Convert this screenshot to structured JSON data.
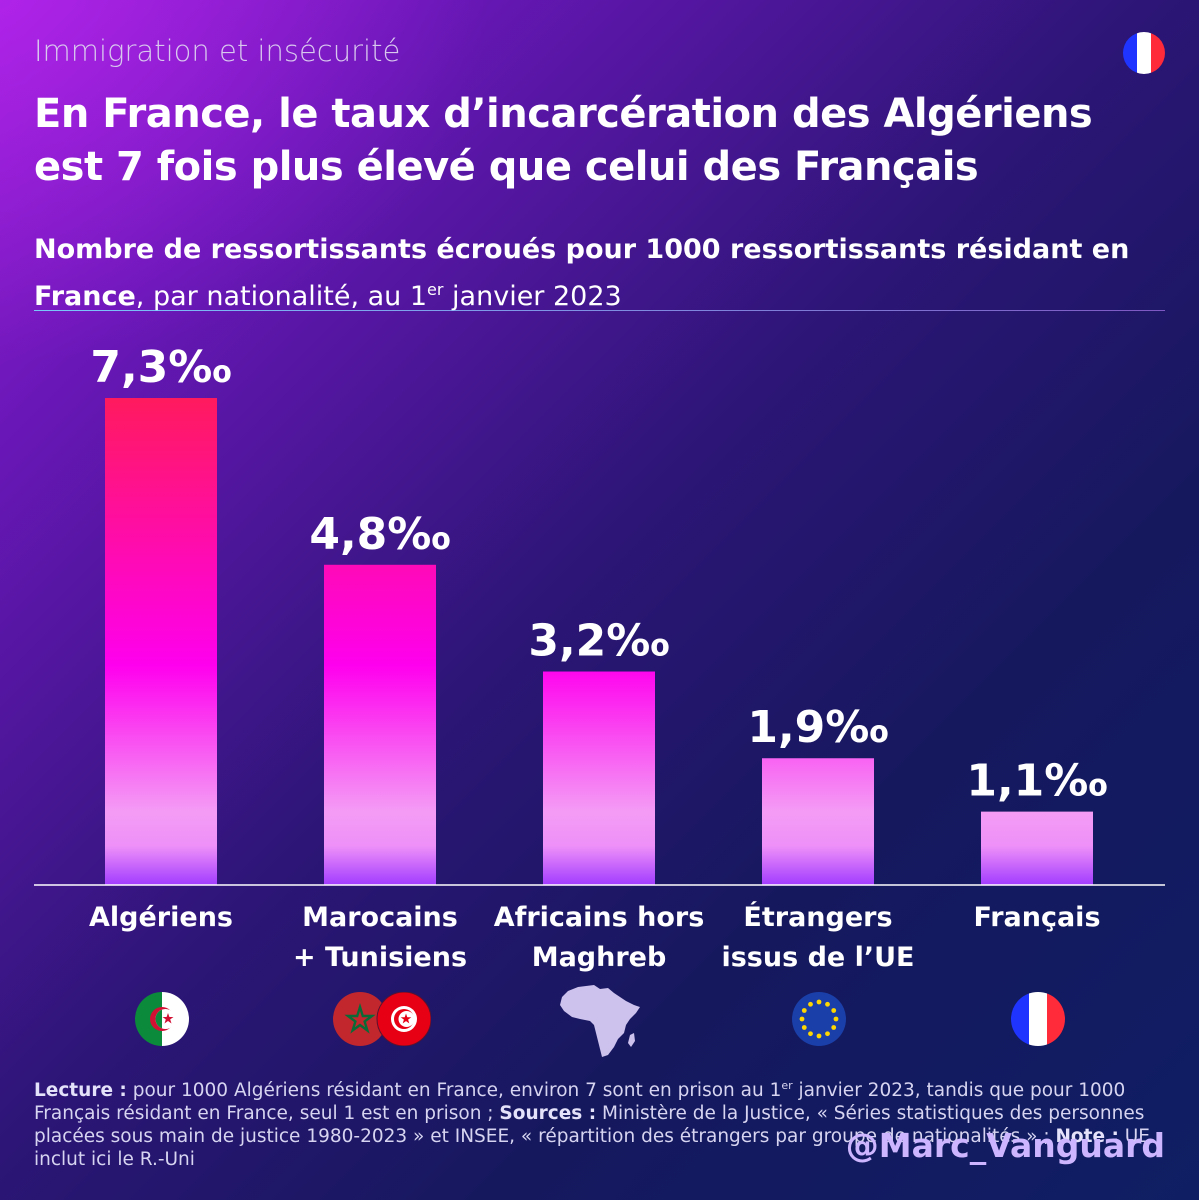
{
  "header": {
    "kicker": "Immigration et insécurité",
    "title_line1": "En France, le taux d’incarcération des Algériens",
    "title_line2": "est 7 fois plus élevé que celui des Français",
    "subtitle_bold_1": "Nombre de ressortissants écroués pour 1000 ressortissants résidant en",
    "subtitle_bold_2": "France",
    "subtitle_regular": ", par nationalité, au 1",
    "subtitle_sup": "er",
    "subtitle_end": " janvier 2023"
  },
  "chart_data": {
    "type": "bar",
    "title": "Nombre de ressortissants écroués pour 1000 ressortissants résidant en France, par nationalité, au 1er janvier 2023",
    "categories": [
      "Algériens",
      "Marocains + Tunisiens",
      "Africains hors Maghreb",
      "Étrangers issus de l’UE",
      "Français"
    ],
    "category_lines": [
      [
        "Algériens"
      ],
      [
        "Marocains",
        "+ Tunisiens"
      ],
      [
        "Africains hors",
        "Maghreb"
      ],
      [
        "Étrangers",
        "issus de l’UE"
      ],
      [
        "Français"
      ]
    ],
    "values": [
      7.3,
      4.8,
      3.2,
      1.9,
      1.1
    ],
    "value_labels": [
      "7,3‰",
      "4,8‰",
      "3,2‰",
      "1,9‰",
      "1,1‰"
    ],
    "unit": "‰",
    "ylim": [
      0,
      7.3
    ],
    "grid": false,
    "legend": "none",
    "icons": [
      "algeria-flag",
      "morocco-tunisia-flags",
      "africa-map",
      "eu-flag",
      "france-flag"
    ]
  },
  "footer": {
    "lecture_label": "Lecture :",
    "lecture_text_1": " pour 1000 Algériens résidant en France, environ 7 sont en prison au 1",
    "lecture_sup": "er",
    "lecture_text_2": " janvier 2023, tandis que pour 1000 Français résidant en France, seul 1 est en prison ; ",
    "sources_label": "Sources :",
    "sources_text": " Ministère de la Justice, « Séries statistiques des personnes placées sous main de justice 1980-2023 » et INSEE, « répartition des étrangers par groupe de nationalités » ; ",
    "note_label": "Note :",
    "note_text": " UE inclut ici le R.-Uni"
  },
  "handle": "@Marc_Vanguard",
  "colors": {
    "bar_top": "#ff1a5e",
    "bar_mid": "#ff00ee",
    "bar_low": "#f49cf5",
    "bar_bottom": "#a23cff",
    "flag_blue": "#1f35ff",
    "flag_red": "#ff2a3a",
    "algeria_green": "#0b8a3c",
    "morocco_red": "#c1272d",
    "tunisia_red": "#e70013",
    "eu_blue": "#1a3fa8",
    "eu_star": "#ffd700"
  }
}
